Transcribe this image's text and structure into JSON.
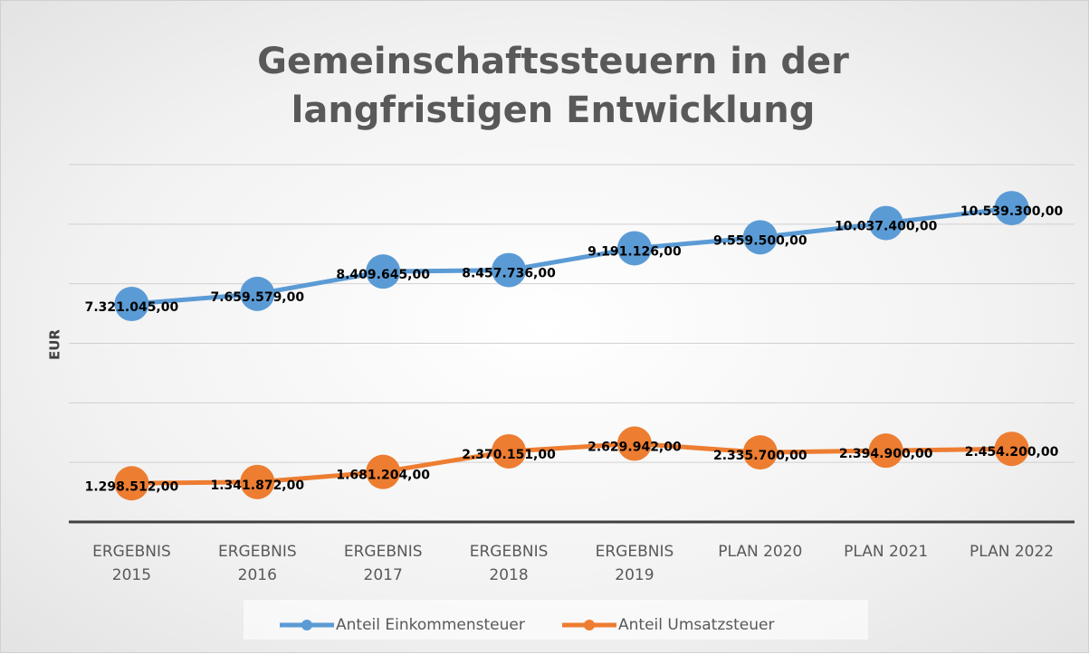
{
  "chart_data": {
    "type": "line",
    "title": "Gemeinschaftssteuern in der langfristigen Entwicklung",
    "y_label": "EUR",
    "categories": [
      "ERGEBNIS 2015",
      "ERGEBNIS 2016",
      "ERGEBNIS 2017",
      "ERGEBNIS 2018",
      "ERGEBNIS 2019",
      "PLAN 2020",
      "PLAN 2021",
      "PLAN 2022"
    ],
    "series": [
      {
        "name": "Anteil Einkommensteuer",
        "color": "#5b9bd5",
        "values": [
          7321045,
          7659579,
          8409645,
          8457736,
          9191126,
          9559500,
          10037400,
          10539300
        ],
        "value_labels": [
          "7.321.045,00",
          "7.659.579,00",
          "8.409.645,00",
          "8.457.736,00",
          "9.191.126,00",
          "9.559.500,00",
          "10.037.400,00",
          "10.539.300,00"
        ]
      },
      {
        "name": "Anteil Umsatzsteuer",
        "color": "#ed7d31",
        "values": [
          1298512,
          1341872,
          1681204,
          2370151,
          2629942,
          2335700,
          2394900,
          2454200
        ],
        "value_labels": [
          "1.298.512,00",
          "1.341.872,00",
          "1.681.204,00",
          "2.370.151,00",
          "2.629.942,00",
          "2.335.700,00",
          "2.394.900,00",
          "2.454.200,00"
        ]
      }
    ],
    "ylim": [
      0,
      12000000
    ],
    "yticks": [
      0,
      2000000,
      4000000,
      6000000,
      8000000,
      10000000,
      12000000
    ],
    "grid": true,
    "legend": "bottom"
  }
}
